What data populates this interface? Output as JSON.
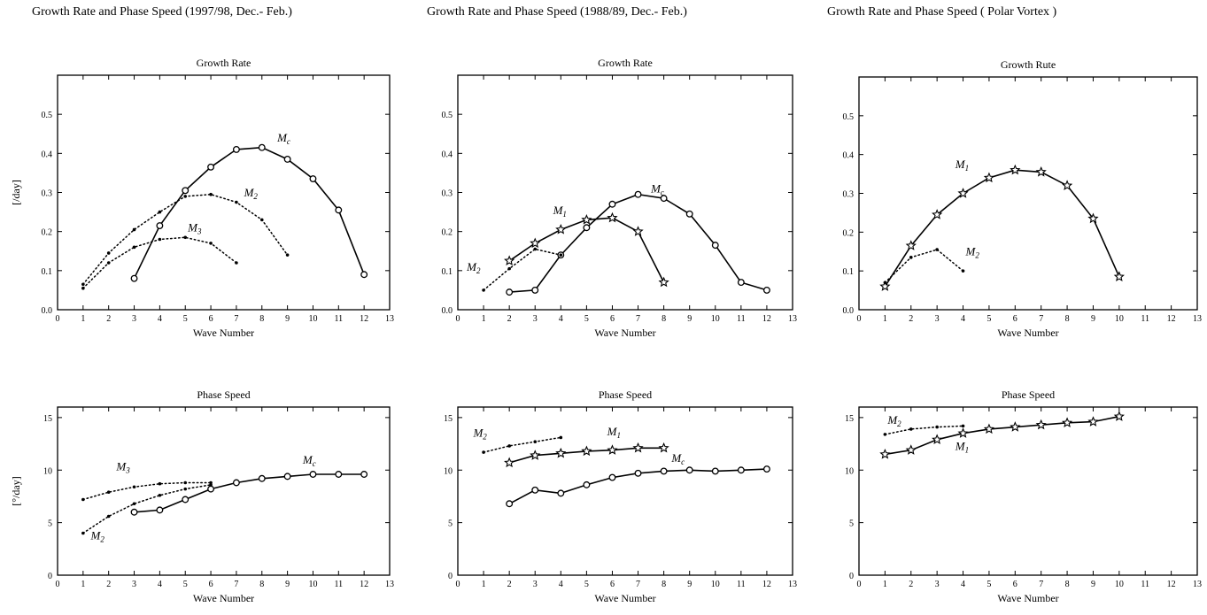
{
  "figure": {
    "columns": [
      {
        "title": "Growth Rate and Phase Speed (1997/98, Dec.- Feb.)"
      },
      {
        "title": "Growth Rate and Phase Speed (1988/89, Dec.- Feb.)"
      },
      {
        "title": "Growth Rate and Phase Speed ( Polar Vortex )"
      }
    ]
  },
  "chart_data": [
    {
      "type": "line",
      "title": "Growth Rate",
      "xlabel": "Wave Number",
      "ylabel": "[/day]",
      "xlim": [
        0,
        13
      ],
      "ylim": [
        0,
        0.6
      ],
      "xticks": [
        "0",
        "1",
        "2",
        "3",
        "4",
        "5",
        "6",
        "7",
        "8",
        "9",
        "10",
        "11",
        "12",
        "13"
      ],
      "yticks": [
        "0.0",
        "0.1",
        "0.2",
        "0.3",
        "0.4",
        "0.5"
      ],
      "grid": false,
      "series": [
        {
          "name": "Mc",
          "style": "solid",
          "marker": "diamond",
          "x": [
            3,
            4,
            5,
            6,
            7,
            8,
            9,
            10,
            11,
            12
          ],
          "y": [
            0.08,
            0.215,
            0.305,
            0.365,
            0.41,
            0.415,
            0.385,
            0.335,
            0.255,
            0.09
          ]
        },
        {
          "name": "M2",
          "style": "dotted",
          "marker": "dot",
          "x": [
            1,
            2,
            3,
            4,
            5,
            6,
            7,
            8,
            9
          ],
          "y": [
            0.065,
            0.145,
            0.205,
            0.25,
            0.29,
            0.295,
            0.275,
            0.23,
            0.14
          ]
        },
        {
          "name": "M3",
          "style": "dotted",
          "marker": "dot",
          "x": [
            1,
            2,
            3,
            4,
            5,
            6,
            7
          ],
          "y": [
            0.055,
            0.12,
            0.16,
            0.18,
            0.185,
            0.17,
            0.12
          ]
        }
      ],
      "labels": [
        {
          "text": "M",
          "sub": "c",
          "x": 8.6,
          "y": 0.43
        },
        {
          "text": "M",
          "sub": "2",
          "x": 7.3,
          "y": 0.29
        },
        {
          "text": "M",
          "sub": "3",
          "x": 5.1,
          "y": 0.2
        }
      ]
    },
    {
      "type": "line",
      "title": "Phase Speed",
      "xlabel": "Wave Number",
      "ylabel": "[°/day]",
      "xlim": [
        0,
        13
      ],
      "ylim": [
        0,
        16
      ],
      "xticks": [
        "0",
        "1",
        "2",
        "3",
        "4",
        "5",
        "6",
        "7",
        "8",
        "9",
        "10",
        "11",
        "12",
        "13"
      ],
      "yticks": [
        "0",
        "5",
        "10",
        "15"
      ],
      "grid": false,
      "series": [
        {
          "name": "Mc",
          "style": "solid",
          "marker": "diamond",
          "x": [
            3,
            4,
            5,
            6,
            7,
            8,
            9,
            10,
            11,
            12
          ],
          "y": [
            6.0,
            6.2,
            7.2,
            8.2,
            8.8,
            9.2,
            9.4,
            9.6,
            9.6,
            9.6
          ]
        },
        {
          "name": "M3",
          "style": "dotted",
          "marker": "dot",
          "x": [
            1,
            2,
            3,
            4,
            5,
            6
          ],
          "y": [
            7.2,
            7.9,
            8.4,
            8.7,
            8.8,
            8.8
          ]
        },
        {
          "name": "M2",
          "style": "dotted",
          "marker": "dot",
          "x": [
            1,
            2,
            3,
            4,
            5,
            6
          ],
          "y": [
            4.0,
            5.6,
            6.8,
            7.6,
            8.2,
            8.6
          ]
        }
      ],
      "labels": [
        {
          "text": "M",
          "sub": "c",
          "x": 9.6,
          "y": 10.6
        },
        {
          "text": "M",
          "sub": "3",
          "x": 2.3,
          "y": 10.0
        },
        {
          "text": "M",
          "sub": "2",
          "x": 1.3,
          "y": 3.4
        }
      ]
    },
    {
      "type": "line",
      "title": "Growth Rate",
      "xlabel": "Wave Number",
      "ylabel": "",
      "xlim": [
        0,
        13
      ],
      "ylim": [
        0,
        0.6
      ],
      "xticks": [
        "0",
        "1",
        "2",
        "3",
        "4",
        "5",
        "6",
        "7",
        "8",
        "9",
        "10",
        "11",
        "12",
        "13"
      ],
      "yticks": [
        "0.0",
        "0.1",
        "0.2",
        "0.3",
        "0.4",
        "0.5"
      ],
      "grid": false,
      "series": [
        {
          "name": "Mc",
          "style": "solid",
          "marker": "diamond",
          "x": [
            2,
            3,
            4,
            5,
            6,
            7,
            8,
            9,
            10,
            11,
            12
          ],
          "y": [
            0.045,
            0.05,
            0.14,
            0.21,
            0.27,
            0.295,
            0.285,
            0.245,
            0.165,
            0.07,
            0.05
          ]
        },
        {
          "name": "M1",
          "style": "solid",
          "marker": "star",
          "x": [
            2,
            3,
            4,
            5,
            6,
            7,
            8
          ],
          "y": [
            0.125,
            0.17,
            0.205,
            0.23,
            0.235,
            0.2,
            0.07
          ]
        },
        {
          "name": "M2",
          "style": "dotted",
          "marker": "dot",
          "x": [
            1,
            2,
            3,
            4
          ],
          "y": [
            0.05,
            0.105,
            0.155,
            0.14
          ]
        }
      ],
      "labels": [
        {
          "text": "M",
          "sub": "c",
          "x": 7.5,
          "y": 0.3
        },
        {
          "text": "M",
          "sub": "1",
          "x": 3.7,
          "y": 0.245
        },
        {
          "text": "M",
          "sub": "2",
          "x": 0.35,
          "y": 0.1
        }
      ]
    },
    {
      "type": "line",
      "title": "Phase Speed",
      "xlabel": "Wave Number",
      "ylabel": "",
      "xlim": [
        0,
        13
      ],
      "ylim": [
        0,
        16
      ],
      "xticks": [
        "0",
        "1",
        "2",
        "3",
        "4",
        "5",
        "6",
        "7",
        "8",
        "9",
        "10",
        "11",
        "12",
        "13"
      ],
      "yticks": [
        "0",
        "5",
        "10",
        "15"
      ],
      "grid": false,
      "series": [
        {
          "name": "M2",
          "style": "dotted",
          "marker": "dot",
          "x": [
            1,
            2,
            3,
            4
          ],
          "y": [
            11.7,
            12.3,
            12.7,
            13.1
          ]
        },
        {
          "name": "M1",
          "style": "solid",
          "marker": "star",
          "x": [
            2,
            3,
            4,
            5,
            6,
            7,
            8
          ],
          "y": [
            10.7,
            11.4,
            11.6,
            11.8,
            11.9,
            12.1,
            12.1
          ]
        },
        {
          "name": "Mc",
          "style": "solid",
          "marker": "diamond",
          "x": [
            2,
            3,
            4,
            5,
            6,
            7,
            8,
            9,
            10,
            11,
            12
          ],
          "y": [
            6.8,
            8.1,
            7.8,
            8.6,
            9.3,
            9.7,
            9.9,
            10.0,
            9.9,
            10.0,
            10.1
          ]
        }
      ],
      "labels": [
        {
          "text": "M",
          "sub": "2",
          "x": 0.6,
          "y": 13.2
        },
        {
          "text": "M",
          "sub": "1",
          "x": 5.8,
          "y": 13.3
        },
        {
          "text": "M",
          "sub": "c",
          "x": 8.3,
          "y": 10.8
        }
      ]
    },
    {
      "type": "line",
      "title": "Growth Rute",
      "xlabel": "Wave Number",
      "ylabel": "",
      "xlim": [
        0,
        13
      ],
      "ylim": [
        0,
        0.6
      ],
      "xticks": [
        "0",
        "1",
        "2",
        "3",
        "4",
        "5",
        "6",
        "7",
        "8",
        "9",
        "10",
        "11",
        "12",
        "13"
      ],
      "yticks": [
        "0.0",
        "0.1",
        "0.2",
        "0.3",
        "0.4",
        "0.5"
      ],
      "grid": false,
      "series": [
        {
          "name": "M1",
          "style": "solid",
          "marker": "star",
          "x": [
            1,
            2,
            3,
            4,
            5,
            6,
            7,
            8,
            9,
            10
          ],
          "y": [
            0.06,
            0.165,
            0.245,
            0.3,
            0.34,
            0.36,
            0.355,
            0.32,
            0.235,
            0.085
          ]
        },
        {
          "name": "M2",
          "style": "dotted",
          "marker": "dot",
          "x": [
            1,
            2,
            3,
            4
          ],
          "y": [
            0.07,
            0.135,
            0.155,
            0.1
          ]
        }
      ],
      "labels": [
        {
          "text": "M",
          "sub": "1",
          "x": 3.7,
          "y": 0.365
        },
        {
          "text": "M",
          "sub": "2",
          "x": 4.1,
          "y": 0.14
        }
      ]
    },
    {
      "type": "line",
      "title": "Phase Speed",
      "xlabel": "Wave Number",
      "ylabel": "",
      "xlim": [
        0,
        13
      ],
      "ylim": [
        0,
        16
      ],
      "xticks": [
        "0",
        "1",
        "2",
        "3",
        "4",
        "5",
        "6",
        "7",
        "8",
        "9",
        "10",
        "11",
        "12",
        "13"
      ],
      "yticks": [
        "0",
        "5",
        "10",
        "15"
      ],
      "grid": false,
      "series": [
        {
          "name": "M2",
          "style": "dotted",
          "marker": "dot",
          "x": [
            1,
            2,
            3,
            4
          ],
          "y": [
            13.4,
            13.9,
            14.1,
            14.2
          ]
        },
        {
          "name": "M1",
          "style": "solid",
          "marker": "star",
          "x": [
            1,
            2,
            3,
            4,
            5,
            6,
            7,
            8,
            9,
            10
          ],
          "y": [
            11.5,
            11.9,
            12.9,
            13.5,
            13.9,
            14.1,
            14.3,
            14.5,
            14.6,
            15.1
          ]
        }
      ],
      "labels": [
        {
          "text": "M",
          "sub": "2",
          "x": 1.1,
          "y": 14.4
        },
        {
          "text": "M",
          "sub": "1",
          "x": 3.7,
          "y": 11.9
        }
      ]
    }
  ]
}
